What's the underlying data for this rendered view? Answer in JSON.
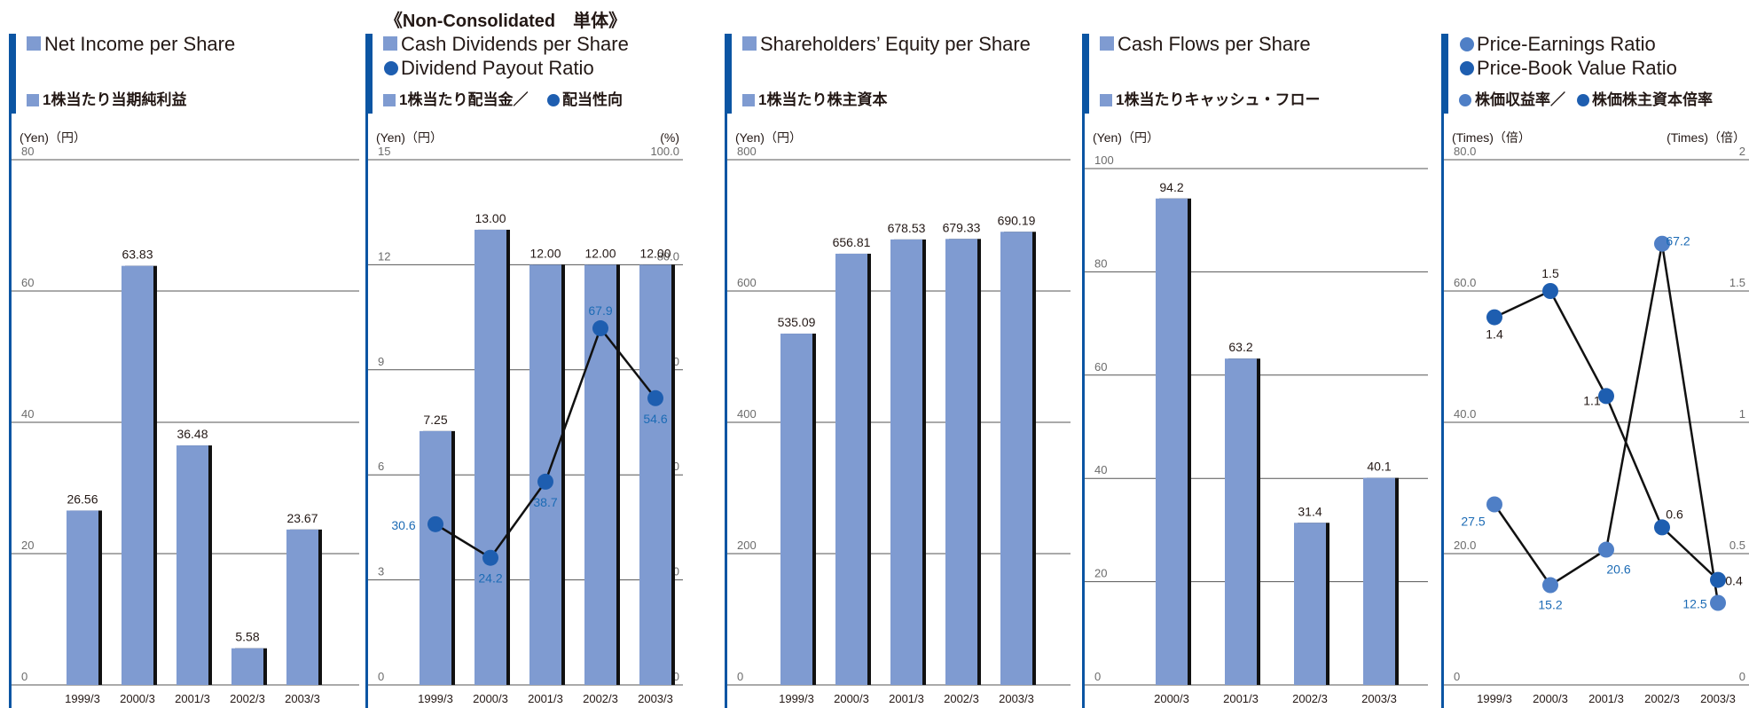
{
  "header": "《Non-Consolidated　単体》",
  "colors": {
    "accent": "#0b55a3",
    "bar": "#7f9bd1",
    "dot": "#1e5eb0",
    "dot_light": "#4f7fc6",
    "label_blue": "#1c6bb5"
  },
  "chart_data": [
    {
      "type": "bar",
      "title": "Net Income per Share",
      "subtitle": "1株当たり当期純利益",
      "y_unit": "(Yen)（円）",
      "categories": [
        "1999/3",
        "2000/3",
        "2001/3",
        "2002/3",
        "2003/3"
      ],
      "values": [
        26.56,
        63.83,
        36.48,
        5.58,
        23.67
      ],
      "value_labels": [
        "26.56",
        "63.83",
        "36.48",
        "5.58",
        "23.67"
      ],
      "ylim": [
        0,
        80
      ],
      "yticks": [
        0,
        20,
        40,
        60,
        80
      ],
      "ytick_labels": [
        "0",
        "20",
        "40",
        "60",
        "80"
      ]
    },
    {
      "type": "bar+line",
      "title": "Cash Dividends per Share",
      "title2": "Dividend Payout Ratio",
      "subtitle": "1株当たり配当金／",
      "subtitle2": "配当性向",
      "y_unit": "(Yen)（円）",
      "y2_unit": "(%)",
      "categories": [
        "1999/3",
        "2000/3",
        "2001/3",
        "2002/3",
        "2003/3"
      ],
      "values": [
        7.25,
        13.0,
        12.0,
        12.0,
        12.0
      ],
      "value_labels": [
        "7.25",
        "13.00",
        "12.00",
        "12.00",
        "12.00"
      ],
      "ylim": [
        0,
        15
      ],
      "yticks": [
        0,
        3,
        6,
        9,
        12,
        15
      ],
      "ytick_labels": [
        "0",
        "3",
        "6",
        "9",
        "12",
        "15"
      ],
      "line_values": [
        30.6,
        24.2,
        38.7,
        67.9,
        54.6
      ],
      "line_labels": [
        "30.6",
        "24.2",
        "38.7",
        "67.9",
        "54.6"
      ],
      "y2lim": [
        0,
        100
      ],
      "y2ticks": [
        0,
        20,
        40,
        60,
        80,
        100
      ],
      "y2tick_labels": [
        "0",
        "20.0",
        "40.0",
        "60.0",
        "80.0",
        "100.0"
      ]
    },
    {
      "type": "bar",
      "title": "Shareholders’ Equity per Share",
      "subtitle": "1株当たり株主資本",
      "y_unit": "(Yen)（円）",
      "categories": [
        "1999/3",
        "2000/3",
        "2001/3",
        "2002/3",
        "2003/3"
      ],
      "values": [
        535.09,
        656.81,
        678.53,
        679.33,
        690.19
      ],
      "value_labels": [
        "535.09",
        "656.81",
        "678.53",
        "679.33",
        "690.19"
      ],
      "ylim": [
        0,
        800
      ],
      "yticks": [
        0,
        200,
        400,
        600,
        800
      ],
      "ytick_labels": [
        "0",
        "200",
        "400",
        "600",
        "800"
      ]
    },
    {
      "type": "bar",
      "title": "Cash Flows per Share",
      "subtitle": "1株当たりキャッシュ・フロー",
      "y_unit": "(Yen)（円）",
      "categories": [
        "2000/3",
        "2001/3",
        "2002/3",
        "2003/3"
      ],
      "values": [
        94.2,
        63.2,
        31.4,
        40.1
      ],
      "value_labels": [
        "94.2",
        "63.2",
        "31.4",
        "40.1"
      ],
      "ylim": [
        0,
        100
      ],
      "yticks": [
        0,
        20,
        40,
        60,
        80,
        100
      ],
      "ytick_labels": [
        "0",
        "20",
        "40",
        "60",
        "80",
        "100"
      ]
    },
    {
      "type": "line",
      "title": "Price-Earnings Ratio",
      "title2": "Price-Book Value Ratio",
      "subtitle": "株価収益率／",
      "subtitle2": "株価株主資本倍率",
      "y_unit": "(Times)（倍）",
      "y2_unit": "(Times)（倍）",
      "categories": [
        "1999/3",
        "2000/3",
        "2001/3",
        "2002/3",
        "2003/3"
      ],
      "ylim": [
        0,
        80
      ],
      "yticks": [
        0,
        20,
        40,
        60,
        80
      ],
      "ytick_labels": [
        "0",
        "20.0",
        "40.0",
        "60.0",
        "80.0"
      ],
      "y2lim": [
        0,
        2
      ],
      "y2ticks": [
        0,
        0.5,
        1,
        1.5,
        2
      ],
      "y2tick_labels": [
        "0",
        "0.5",
        "1",
        "1.5",
        "2"
      ],
      "series": [
        {
          "values": [
            27.5,
            15.2,
            20.6,
            67.2,
            12.5
          ],
          "labels": [
            "27.5",
            "15.2",
            "20.6",
            "67.2",
            "12.5"
          ]
        },
        {
          "values": [
            1.4,
            1.5,
            1.1,
            0.6,
            0.4
          ],
          "labels": [
            "1.4",
            "1.5",
            "1.1",
            "0.6",
            "0.4"
          ]
        }
      ]
    }
  ]
}
